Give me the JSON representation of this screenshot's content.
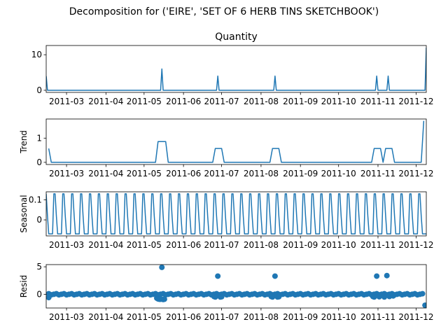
{
  "figure": {
    "suptitle": "Decomposition for ('EIRE', 'SET OF 6 HERB TINS SKETCHBOOK')"
  },
  "chart_data": [
    {
      "type": "line",
      "title": "Quantity",
      "ylabel": "",
      "ylim": [
        -0.6,
        12.6
      ],
      "yticks": [
        0,
        10
      ],
      "xlim": [
        "2011-02-13",
        "2011-12-09"
      ],
      "xticks": [
        "2011-03",
        "2011-04",
        "2011-05",
        "2011-06",
        "2011-07",
        "2011-08",
        "2011-09",
        "2011-10",
        "2011-11",
        "2011-12"
      ],
      "color": "#1f77b4",
      "series": [
        {
          "x": [
            "2011-02-13",
            "2011-02-14",
            "2011-05-14",
            "2011-05-15",
            "2011-05-16",
            "2011-06-27",
            "2011-06-28",
            "2011-06-29",
            "2011-08-11",
            "2011-08-12",
            "2011-08-13",
            "2011-10-30",
            "2011-10-31",
            "2011-11-01",
            "2011-11-08",
            "2011-11-09",
            "2011-11-10",
            "2011-12-08",
            "2011-12-09"
          ],
          "values": [
            4,
            0,
            0,
            6,
            0,
            0,
            4,
            0,
            0,
            4,
            0,
            0,
            4,
            0,
            0,
            4,
            0,
            0,
            12
          ]
        }
      ]
    },
    {
      "type": "line",
      "title": "",
      "ylabel": "Trend",
      "ylim": [
        -0.09,
        1.79
      ],
      "yticks": [
        0,
        1
      ],
      "xlim": [
        "2011-02-13",
        "2011-12-09"
      ],
      "xticks": [
        "2011-03",
        "2011-04",
        "2011-05",
        "2011-06",
        "2011-07",
        "2011-08",
        "2011-09",
        "2011-10",
        "2011-11",
        "2011-12"
      ],
      "color": "#1f77b4",
      "series": [
        {
          "x": [
            "2011-02-15",
            "2011-02-17",
            "2011-05-10",
            "2011-05-12",
            "2011-05-18",
            "2011-05-20",
            "2011-06-24",
            "2011-06-26",
            "2011-07-01",
            "2011-07-03",
            "2011-08-08",
            "2011-08-10",
            "2011-08-15",
            "2011-08-17",
            "2011-10-27",
            "2011-10-29",
            "2011-11-03",
            "2011-11-05",
            "2011-11-07",
            "2011-11-12",
            "2011-11-14",
            "2011-12-05",
            "2011-12-07"
          ],
          "values": [
            0.571,
            0,
            0,
            0.857,
            0.857,
            0,
            0,
            0.571,
            0.571,
            0,
            0,
            0.571,
            0.571,
            0,
            0,
            0.571,
            0.571,
            0,
            0.571,
            0.571,
            0,
            0,
            1.714
          ]
        }
      ]
    },
    {
      "type": "line",
      "title": "",
      "ylabel": "Seasonal",
      "ylim": [
        -0.08,
        0.14
      ],
      "yticks": [
        0.0,
        0.1
      ],
      "xlim": [
        "2011-02-13",
        "2011-12-09"
      ],
      "xticks": [
        "2011-03",
        "2011-04",
        "2011-05",
        "2011-06",
        "2011-07",
        "2011-08",
        "2011-09",
        "2011-10",
        "2011-11",
        "2011-12"
      ],
      "color": "#1f77b4",
      "period": 7,
      "series": [
        {
          "x_start": "2011-02-13",
          "x_end": "2011-12-09",
          "pattern": [
            0.13,
            0.02,
            -0.07,
            -0.07,
            -0.07,
            -0.07,
            0.13
          ]
        }
      ]
    },
    {
      "type": "scatter",
      "title": "",
      "ylabel": "Resid",
      "ylim": [
        -2.5,
        5.4
      ],
      "yticks": [
        0,
        5
      ],
      "xlim": [
        "2011-02-13",
        "2011-12-09"
      ],
      "xticks": [
        "2011-03",
        "2011-04",
        "2011-05",
        "2011-06",
        "2011-07",
        "2011-08",
        "2011-09",
        "2011-10",
        "2011-11",
        "2011-12"
      ],
      "color": "#1f77b4",
      "series": [
        {
          "baseline": {
            "x_start": "2011-02-15",
            "x_end": "2011-12-06",
            "step_days": 2,
            "values": [
              0.1,
              -0.1,
              0.0
            ]
          },
          "x": [
            "2011-02-15",
            "2011-05-11",
            "2011-05-12",
            "2011-05-13",
            "2011-05-14",
            "2011-05-15",
            "2011-05-16",
            "2011-05-17",
            "2011-06-25",
            "2011-06-26",
            "2011-06-28",
            "2011-06-30",
            "2011-07-01",
            "2011-08-09",
            "2011-08-10",
            "2011-08-12",
            "2011-08-14",
            "2011-08-15",
            "2011-10-28",
            "2011-10-29",
            "2011-10-31",
            "2011-11-02",
            "2011-11-04",
            "2011-11-06",
            "2011-11-08",
            "2011-11-10",
            "2011-11-13",
            "2011-12-08"
          ],
          "values": [
            -0.6,
            -0.7,
            -0.85,
            -0.9,
            -0.9,
            4.9,
            -0.95,
            -0.9,
            -0.4,
            -0.5,
            3.3,
            -0.5,
            -0.45,
            -0.4,
            -0.5,
            3.3,
            -0.5,
            -0.45,
            -0.4,
            -0.5,
            3.3,
            -0.45,
            0.0,
            -0.5,
            3.4,
            -0.4,
            -0.3,
            -2.0
          ]
        }
      ]
    }
  ]
}
